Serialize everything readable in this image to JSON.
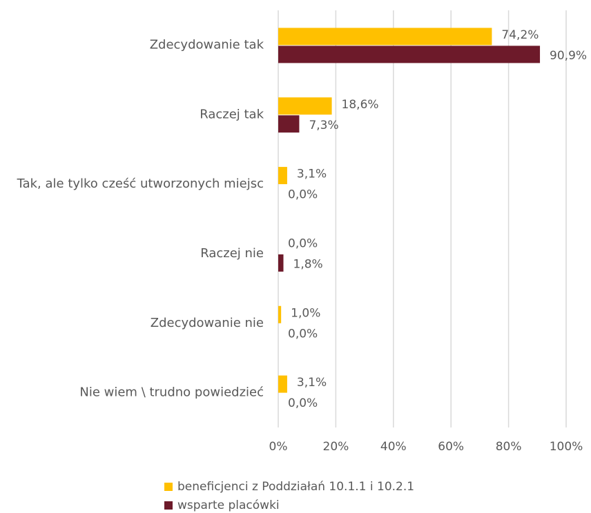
{
  "chart_data": {
    "type": "barh",
    "categories": [
      "Zdecydowanie tak",
      "Raczej tak",
      "Tak, ale tylko cześć utworzonych miejsc",
      "Raczej nie",
      "Zdecydowanie nie",
      "Nie wiem \\ trudno powiedzieć"
    ],
    "series": [
      {
        "name": "beneficjenci z Poddziałań 10.1.1 i 10.2.1",
        "color": "#ffc000",
        "values": [
          74.2,
          18.6,
          3.1,
          0.0,
          1.0,
          3.1
        ],
        "value_labels": [
          "74,2%",
          "18,6%",
          "3,1%",
          "0,0%",
          "1,0%",
          "3,1%"
        ]
      },
      {
        "name": "wsparte placówki",
        "color": "#6d1a2a",
        "values": [
          90.9,
          7.3,
          0.0,
          1.8,
          0.0,
          0.0
        ],
        "value_labels": [
          "90,9%",
          "7,3%",
          "0,0%",
          "1,8%",
          "0,0%",
          "0,0%"
        ]
      }
    ],
    "xlim": [
      0,
      100
    ],
    "xticks": [
      {
        "value": 0,
        "label": "0%"
      },
      {
        "value": 20,
        "label": "20%"
      },
      {
        "value": 40,
        "label": "40%"
      },
      {
        "value": 60,
        "label": "60%"
      },
      {
        "value": 80,
        "label": "80%"
      },
      {
        "value": 100,
        "label": "100%"
      }
    ],
    "grid": true,
    "legend": "bottom"
  }
}
